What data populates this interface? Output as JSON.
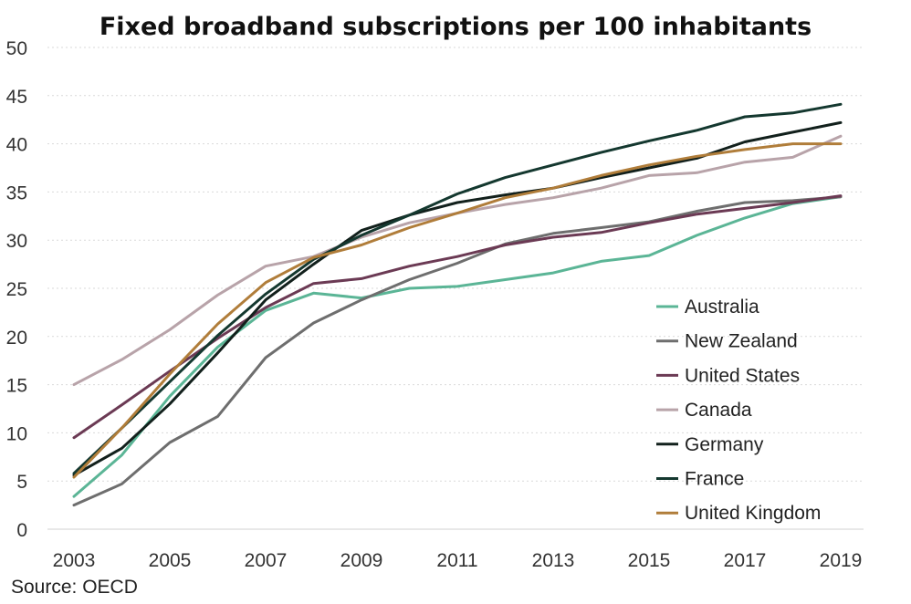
{
  "chart_data": {
    "type": "line",
    "title": "Fixed broadband subscriptions per 100 inhabitants",
    "xlabel": "",
    "ylabel": "",
    "x": [
      2003,
      2004,
      2005,
      2006,
      2007,
      2008,
      2009,
      2010,
      2011,
      2012,
      2013,
      2014,
      2015,
      2016,
      2017,
      2018,
      2019
    ],
    "x_ticks": [
      "2003",
      "2005",
      "2007",
      "2009",
      "2011",
      "2013",
      "2015",
      "2017",
      "2019"
    ],
    "y_ticks": [
      "0",
      "5",
      "10",
      "15",
      "20",
      "25",
      "30",
      "35",
      "40",
      "45",
      "50"
    ],
    "xlim": [
      2003,
      2019
    ],
    "ylim": [
      0,
      50
    ],
    "grid": "horizontal",
    "legend_position": "bottom-right",
    "series": [
      {
        "name": "Australia",
        "color": "#5bb596",
        "values": [
          3.4,
          7.7,
          13.8,
          18.9,
          22.7,
          24.5,
          24.0,
          25.0,
          25.2,
          25.9,
          26.6,
          27.8,
          28.4,
          30.5,
          32.3,
          33.8,
          34.5
        ]
      },
      {
        "name": "New Zealand",
        "color": "#6e6e6e",
        "values": [
          2.5,
          4.7,
          9.0,
          11.7,
          17.8,
          21.4,
          23.8,
          25.9,
          27.6,
          29.6,
          30.7,
          31.3,
          31.9,
          33.0,
          33.9,
          34.1,
          34.5
        ]
      },
      {
        "name": "United States",
        "color": "#6b3a54",
        "values": [
          9.5,
          12.9,
          16.4,
          19.8,
          23.0,
          25.5,
          26.0,
          27.3,
          28.3,
          29.5,
          30.3,
          30.8,
          31.8,
          32.7,
          33.3,
          33.9,
          34.6
        ]
      },
      {
        "name": "Canada",
        "color": "#b8a3a9",
        "values": [
          15.0,
          17.6,
          20.7,
          24.3,
          27.3,
          28.3,
          30.3,
          31.8,
          32.8,
          33.7,
          34.4,
          35.4,
          36.7,
          37.0,
          38.1,
          38.6,
          40.8
        ]
      },
      {
        "name": "Germany",
        "color": "#12201c",
        "values": [
          5.6,
          8.4,
          13.0,
          18.3,
          23.8,
          27.5,
          31.0,
          32.6,
          33.9,
          34.7,
          35.4,
          36.5,
          37.5,
          38.5,
          40.2,
          41.2,
          42.2
        ]
      },
      {
        "name": "France",
        "color": "#14382f",
        "values": [
          5.8,
          10.5,
          15.3,
          20.1,
          24.4,
          28.0,
          30.5,
          32.6,
          34.8,
          36.5,
          37.8,
          39.1,
          40.3,
          41.4,
          42.8,
          43.2,
          44.1
        ]
      },
      {
        "name": "United Kingdom",
        "color": "#b07d3a",
        "values": [
          5.4,
          10.5,
          16.1,
          21.3,
          25.6,
          28.2,
          29.5,
          31.3,
          32.8,
          34.4,
          35.4,
          36.7,
          37.8,
          38.7,
          39.4,
          40.0,
          40.0
        ]
      }
    ]
  },
  "source": "Source: OECD"
}
